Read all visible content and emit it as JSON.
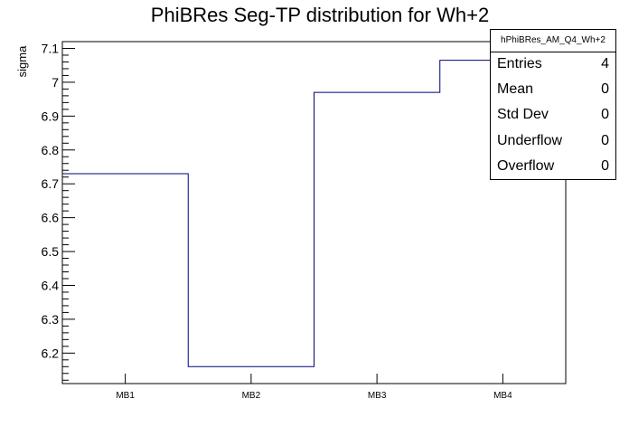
{
  "chart_data": {
    "type": "bar",
    "style": "step-histogram",
    "title": "PhiBRes Seg-TP distribution for Wh+2",
    "xlabel": "",
    "ylabel": "sigma",
    "categories": [
      "MB1",
      "MB2",
      "MB3",
      "MB4"
    ],
    "values": [
      6.73,
      6.16,
      6.97,
      7.065
    ],
    "ylim": [
      6.11,
      7.12
    ],
    "yticks": [
      6.2,
      6.3,
      6.4,
      6.5,
      6.6,
      6.7,
      6.8,
      6.9,
      7.0,
      7.1
    ],
    "ytick_labels": [
      "6.2",
      "6.3",
      "6.4",
      "6.5",
      "6.6",
      "6.7",
      "6.8",
      "6.9",
      "7",
      "7.1"
    ],
    "line_color": "#000080",
    "grid": false
  },
  "stats": {
    "name": "hPhiBRes_AM_Q4_Wh+2",
    "rows": [
      {
        "label": "Entries",
        "value": "4"
      },
      {
        "label": "Mean",
        "value": "0"
      },
      {
        "label": "Std Dev",
        "value": "0"
      },
      {
        "label": "Underflow",
        "value": "0"
      },
      {
        "label": "Overflow",
        "value": "0"
      }
    ]
  }
}
